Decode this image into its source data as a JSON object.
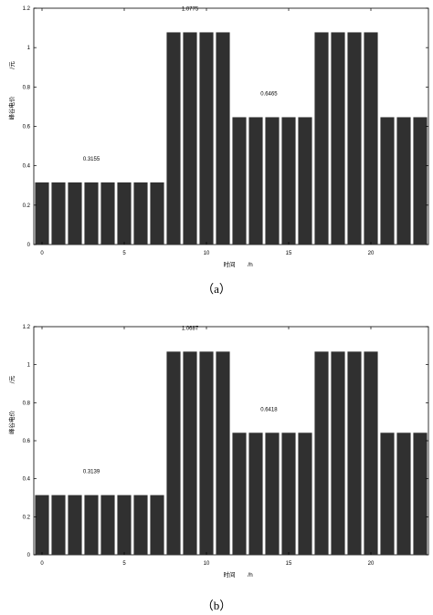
{
  "chart_data": [
    {
      "type": "bar",
      "panel_label": "（a）",
      "xlabel_main": "时间",
      "xlabel_unit": "/h",
      "ylabel_main": "峰谷电价",
      "ylabel_unit": "/元",
      "x": [
        0,
        1,
        2,
        3,
        4,
        5,
        6,
        7,
        8,
        9,
        10,
        11,
        12,
        13,
        14,
        15,
        16,
        17,
        18,
        19,
        20,
        21,
        22,
        23
      ],
      "values": [
        0.3155,
        0.3155,
        0.3155,
        0.3155,
        0.3155,
        0.3155,
        0.3155,
        0.3155,
        1.0775,
        1.0775,
        1.0775,
        1.0775,
        0.6465,
        0.6465,
        0.6465,
        0.6465,
        0.6465,
        1.0775,
        1.0775,
        1.0775,
        1.0775,
        0.6465,
        0.6465,
        0.6465
      ],
      "annotations": [
        {
          "text": "0.3155",
          "x": 3.0,
          "y": 0.3155
        },
        {
          "text": "1.0775",
          "x": 9.0,
          "y": 1.0775
        },
        {
          "text": "0.6465",
          "x": 13.8,
          "y": 0.6465
        }
      ],
      "xticks": [
        0,
        5,
        10,
        15,
        20
      ],
      "xtick_labels": [
        "0",
        "5",
        "10",
        "15",
        "20"
      ],
      "yticks": [
        0,
        0.2,
        0.4,
        0.6,
        0.8,
        1,
        1.2
      ],
      "ytick_labels": [
        "0",
        "0.2",
        "0.4",
        "0.6",
        "0.8",
        "1",
        "1.2"
      ],
      "xlim": [
        -0.5,
        23.5
      ],
      "ylim": [
        0,
        1.2
      ],
      "bar_color": "#303030",
      "grid": false
    },
    {
      "type": "bar",
      "panel_label": "（b）",
      "xlabel_main": "时间",
      "xlabel_unit": "/h",
      "ylabel_main": "峰谷电价",
      "ylabel_unit": "/元",
      "x": [
        0,
        1,
        2,
        3,
        4,
        5,
        6,
        7,
        8,
        9,
        10,
        11,
        12,
        13,
        14,
        15,
        16,
        17,
        18,
        19,
        20,
        21,
        22,
        23
      ],
      "values": [
        0.3139,
        0.3139,
        0.3139,
        0.3139,
        0.3139,
        0.3139,
        0.3139,
        0.3139,
        1.0687,
        1.0687,
        1.0687,
        1.0687,
        0.6418,
        0.6418,
        0.6418,
        0.6418,
        0.6418,
        1.0687,
        1.0687,
        1.0687,
        1.0687,
        0.6418,
        0.6418,
        0.6418
      ],
      "annotations": [
        {
          "text": "0.3139",
          "x": 3.0,
          "y": 0.3139
        },
        {
          "text": "1.0687",
          "x": 9.0,
          "y": 1.0687
        },
        {
          "text": "0.6418",
          "x": 13.8,
          "y": 0.6418
        }
      ],
      "xticks": [
        0,
        5,
        10,
        15,
        20
      ],
      "xtick_labels": [
        "0",
        "5",
        "10",
        "15",
        "20"
      ],
      "yticks": [
        0,
        0.2,
        0.4,
        0.6,
        0.8,
        1,
        1.2
      ],
      "ytick_labels": [
        "0",
        "0.2",
        "0.4",
        "0.6",
        "0.8",
        "1",
        "1.2"
      ],
      "xlim": [
        -0.5,
        23.5
      ],
      "ylim": [
        0,
        1.2
      ],
      "bar_color": "#303030",
      "grid": false
    }
  ]
}
